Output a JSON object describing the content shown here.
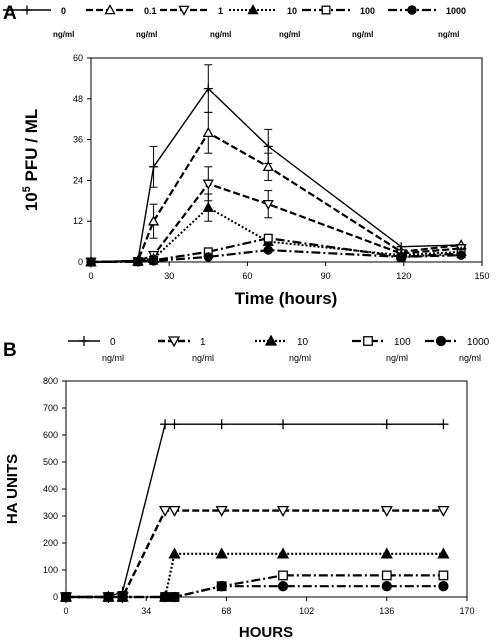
{
  "chart_data": [
    {
      "panel": "A",
      "type": "line",
      "ylabel_base": "10",
      "ylabel_sup": "5",
      "ylabel_rest": " PFU / ML",
      "xlabel": "Time (hours)",
      "xlim": [
        0,
        150
      ],
      "ylim": [
        0,
        60
      ],
      "xticks": [
        "0",
        "30",
        "60",
        "90",
        "120",
        "150"
      ],
      "yticks": [
        "0",
        "12",
        "24",
        "36",
        "48",
        "60"
      ],
      "x": [
        0,
        18,
        24,
        45,
        68,
        119,
        142
      ],
      "series": [
        {
          "name": "0",
          "unit": "ng/ml",
          "marker": "plus",
          "line": "solid",
          "width": 1.4,
          "values": [
            0,
            0.5,
            28,
            51,
            34,
            4.5,
            5
          ],
          "err": [
            null,
            null,
            6,
            7,
            5,
            null,
            null
          ]
        },
        {
          "name": "0.1",
          "unit": "ng/ml",
          "marker": "tri-up-open",
          "line": "dash",
          "width": 2.2,
          "values": [
            0,
            0.3,
            12,
            38,
            28,
            3,
            5
          ],
          "err": [
            null,
            null,
            5,
            6,
            4,
            null,
            null
          ]
        },
        {
          "name": "1",
          "unit": "ng/ml",
          "marker": "tri-down-open",
          "line": "dash",
          "width": 2.2,
          "values": [
            0,
            0.2,
            2,
            23,
            17,
            2.5,
            4
          ],
          "err": [
            null,
            null,
            null,
            5,
            4,
            null,
            null
          ]
        },
        {
          "name": "10",
          "unit": "ng/ml",
          "marker": "tri-up-filled",
          "line": "dot",
          "width": 2.0,
          "values": [
            0,
            0.2,
            1,
            16,
            6,
            2,
            3
          ],
          "err": [
            null,
            null,
            null,
            4,
            2,
            null,
            null
          ]
        },
        {
          "name": "100",
          "unit": "ng/ml",
          "marker": "square-open",
          "line": "dashdot",
          "width": 2.2,
          "values": [
            0,
            0.1,
            0.5,
            3,
            7,
            1.5,
            2.5
          ],
          "err": [
            null,
            null,
            null,
            null,
            null,
            null,
            null
          ]
        },
        {
          "name": "1000",
          "unit": "ng/ml",
          "marker": "circle-filled",
          "line": "dashdot",
          "width": 2.2,
          "values": [
            0,
            0.1,
            0.3,
            1.5,
            3.5,
            1.5,
            2
          ],
          "err": [
            null,
            null,
            null,
            null,
            null,
            null,
            null
          ]
        }
      ]
    },
    {
      "panel": "B",
      "type": "line",
      "ylabel": "HA  UNITS",
      "xlabel": "HOURS",
      "xlim": [
        0,
        170
      ],
      "ylim": [
        0,
        800
      ],
      "xticks": [
        "0",
        "34",
        "68",
        "102",
        "136",
        "170"
      ],
      "yticks": [
        "0",
        "100",
        "200",
        "300",
        "400",
        "500",
        "600",
        "700",
        "800"
      ],
      "series": [
        {
          "name": "0",
          "unit": "ng/ml",
          "marker": "plus",
          "line": "solid",
          "width": 1.4,
          "x": [
            0,
            18,
            24,
            42,
            46,
            66,
            92,
            136,
            160
          ],
          "values": [
            0,
            0,
            20,
            640,
            640,
            640,
            640,
            640,
            640
          ]
        },
        {
          "name": "1",
          "unit": "ng/ml",
          "marker": "tri-down-open",
          "line": "dash",
          "width": 2.4,
          "x": [
            0,
            18,
            24,
            42,
            46,
            66,
            92,
            136,
            160
          ],
          "values": [
            0,
            0,
            0,
            320,
            320,
            320,
            320,
            320,
            320
          ]
        },
        {
          "name": "10",
          "unit": "ng/ml",
          "marker": "tri-up-filled",
          "line": "dot",
          "width": 2.2,
          "x": [
            0,
            18,
            24,
            42,
            46,
            66,
            92,
            136,
            160
          ],
          "values": [
            0,
            0,
            0,
            0,
            160,
            160,
            160,
            160,
            160
          ]
        },
        {
          "name": "100",
          "unit": "ng/ml",
          "marker": "square-open",
          "line": "dashdot",
          "width": 2.2,
          "x": [
            0,
            18,
            24,
            42,
            46,
            66,
            92,
            136,
            160
          ],
          "values": [
            0,
            0,
            0,
            0,
            0,
            40,
            80,
            80,
            80
          ]
        },
        {
          "name": "1000",
          "unit": "ng/ml",
          "marker": "circle-filled",
          "line": "dashdot",
          "width": 2.2,
          "x": [
            0,
            18,
            24,
            42,
            46,
            66,
            92,
            136,
            160
          ],
          "values": [
            0,
            0,
            0,
            0,
            0,
            40,
            40,
            40,
            40
          ]
        }
      ]
    }
  ]
}
